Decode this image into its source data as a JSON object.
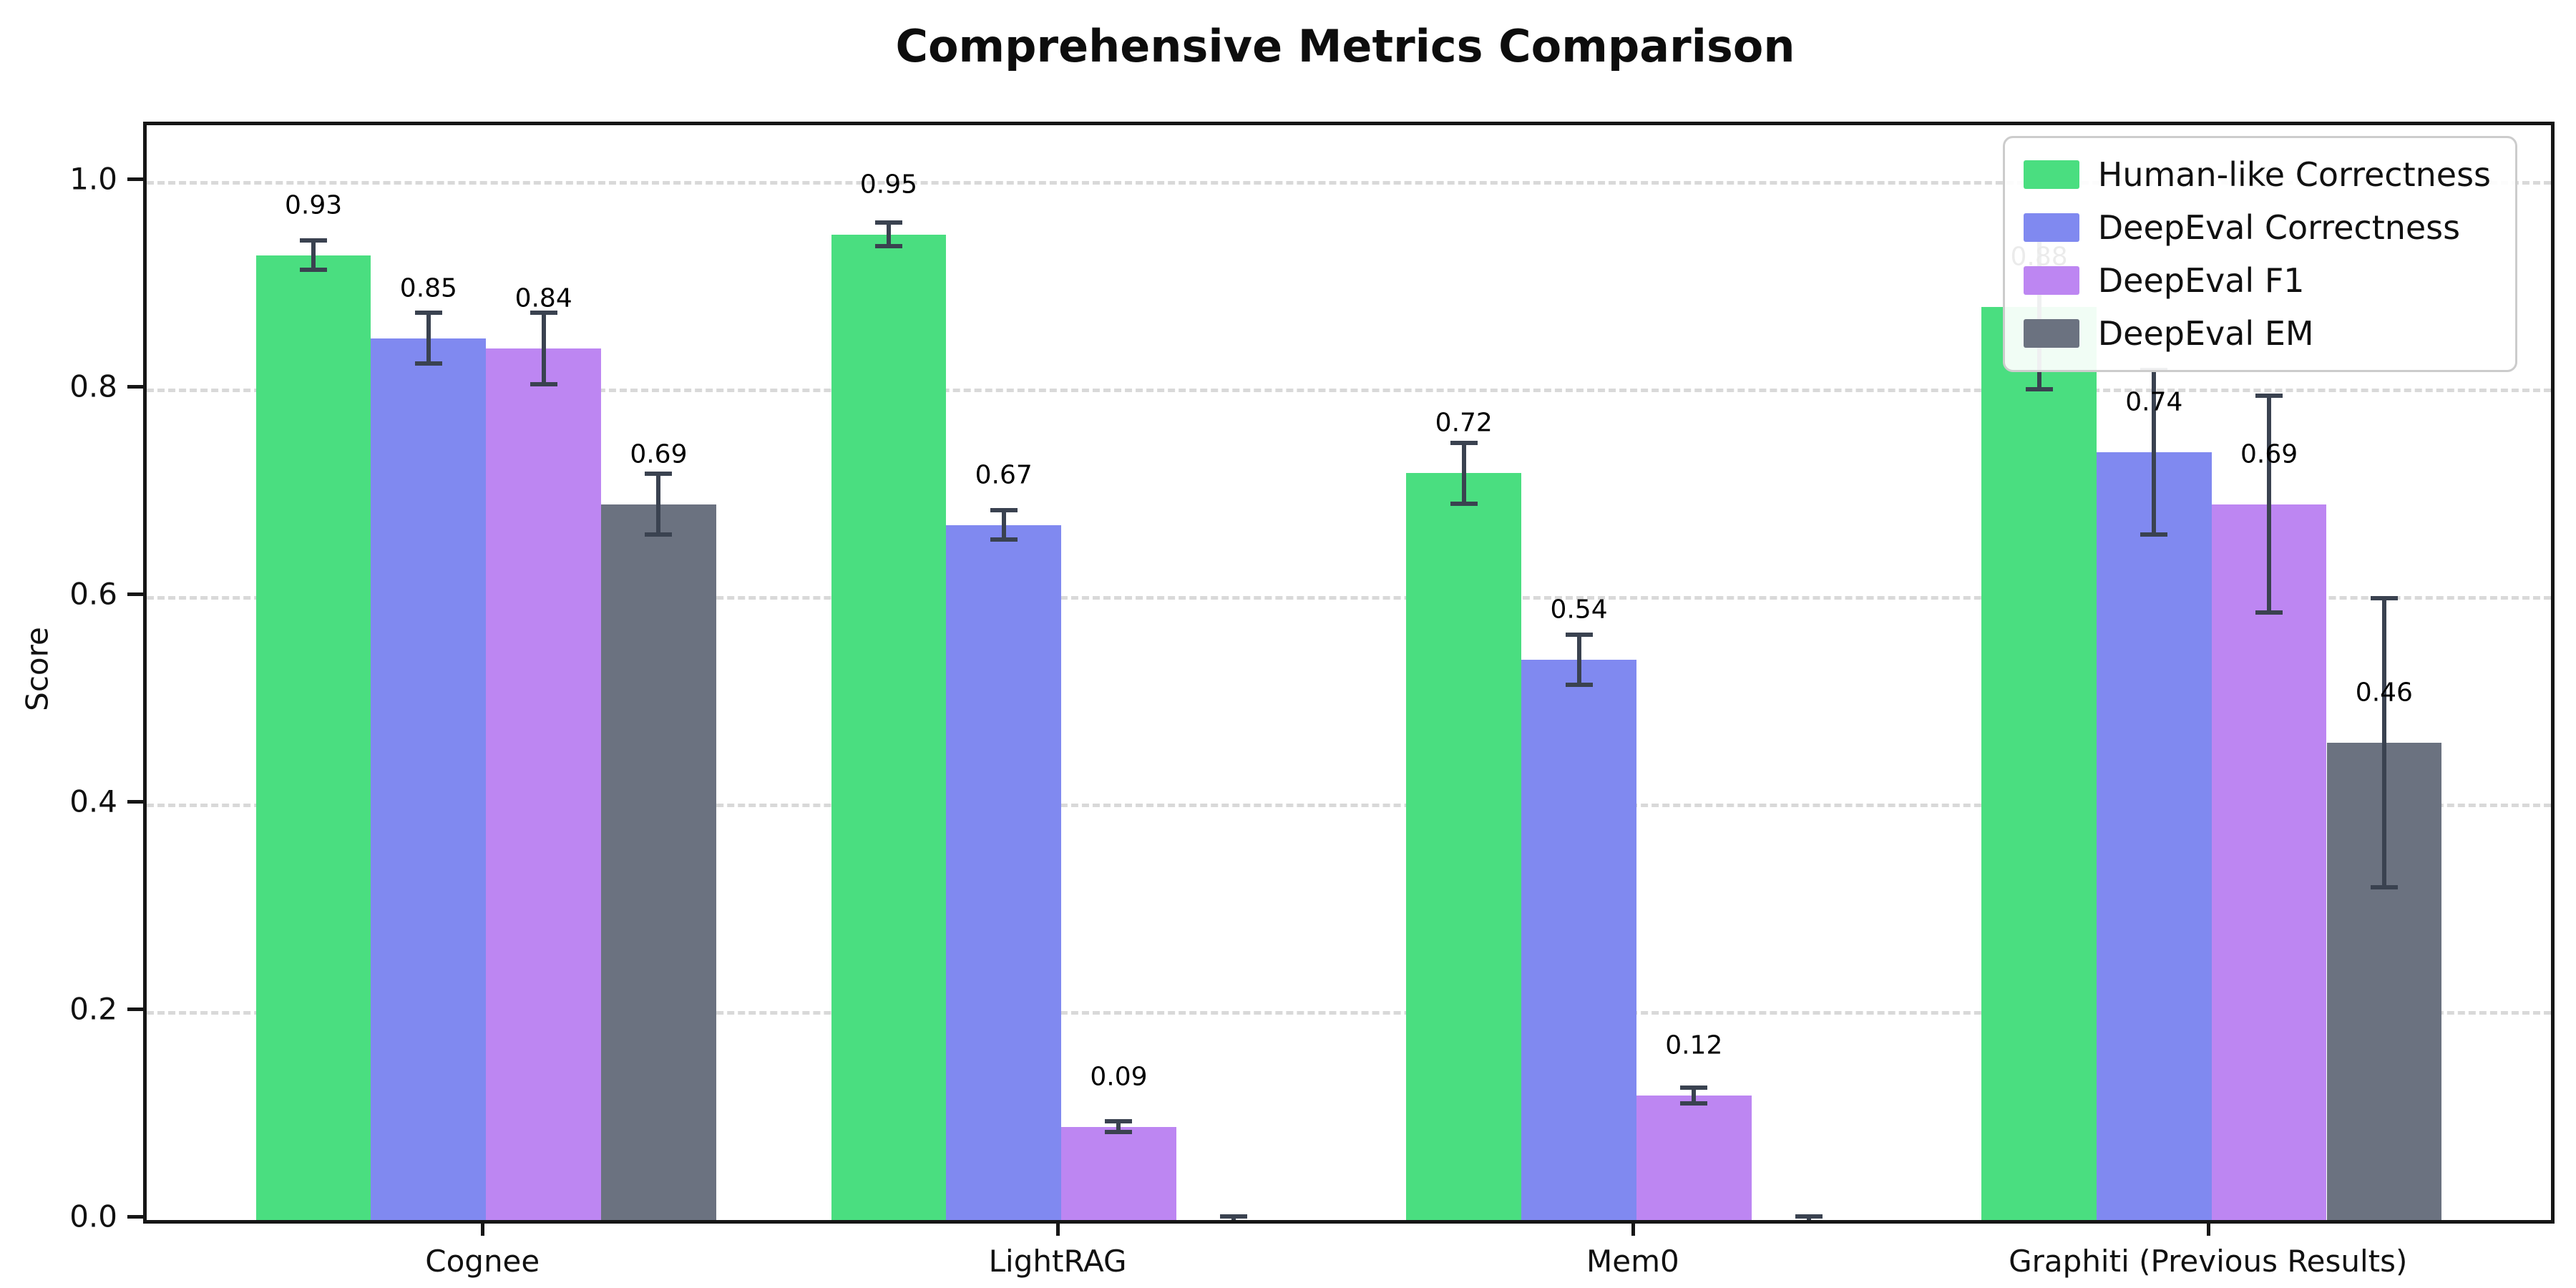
{
  "chart_data": {
    "type": "bar",
    "title": "Comprehensive Metrics Comparison",
    "xlabel": "",
    "ylabel": "Score",
    "categories": [
      "Cognee",
      "LightRAG",
      "Mem0",
      "Graphiti (Previous Results)"
    ],
    "yticks": [
      "0.0",
      "0.2",
      "0.4",
      "0.6",
      "0.8",
      "1.0"
    ],
    "ytick_values": [
      0.0,
      0.2,
      0.4,
      0.6,
      0.8,
      1.0
    ],
    "ylim": [
      0.0,
      1.055
    ],
    "grid": "horizontal-dashed",
    "legend_position": "upper right",
    "series": [
      {
        "name": "Human-like Correctness",
        "color": "#4ade80",
        "values": [
          0.93,
          0.95,
          0.72,
          0.88
        ],
        "errors": [
          0.015,
          0.012,
          0.03,
          0.08
        ],
        "labels": [
          "0.93",
          "0.95",
          "0.72",
          "0.88"
        ]
      },
      {
        "name": "DeepEval Correctness",
        "color": "#8089f0",
        "values": [
          0.85,
          0.67,
          0.54,
          0.74
        ],
        "errors": [
          0.025,
          0.015,
          0.025,
          0.08
        ],
        "labels": [
          "0.85",
          "0.67",
          "0.54",
          "0.74"
        ]
      },
      {
        "name": "DeepEval F1",
        "color": "#bd86f2",
        "values": [
          0.84,
          0.09,
          0.12,
          0.69
        ],
        "errors": [
          0.035,
          0.006,
          0.008,
          0.105
        ],
        "labels": [
          "0.84",
          "0.09",
          "0.12",
          "0.69"
        ]
      },
      {
        "name": "DeepEval EM",
        "color": "#6b7280",
        "values": [
          0.69,
          0.0,
          0.0,
          0.46
        ],
        "errors": [
          0.03,
          0.004,
          0.004,
          0.14
        ],
        "labels": [
          "0.69",
          "",
          "",
          "0.46"
        ]
      }
    ],
    "colors": {
      "error_bar": "#3a4250",
      "axis": "#161616",
      "grid": "#d9d9d9",
      "background": "#ffffff",
      "text": "#111111"
    }
  }
}
